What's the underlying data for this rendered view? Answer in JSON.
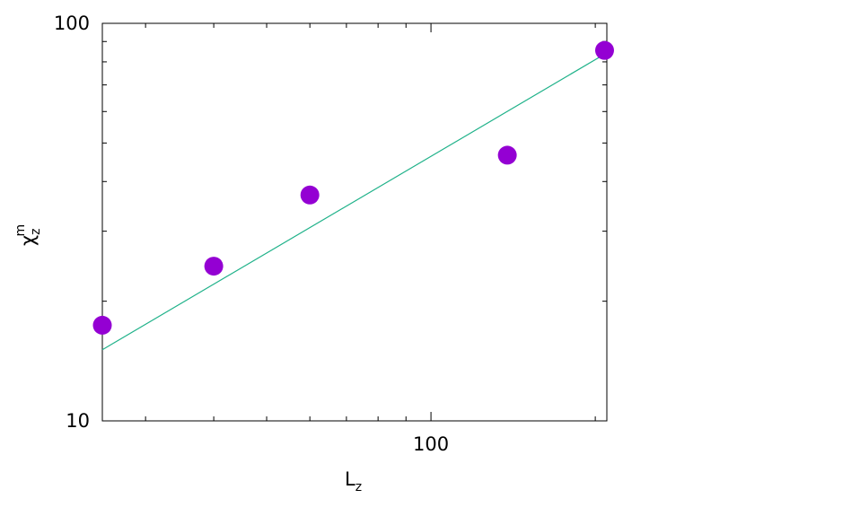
{
  "chart_data": {
    "type": "scatter",
    "x_scale": "log",
    "y_scale": "log",
    "xlim": [
      25,
      210
    ],
    "ylim": [
      10,
      100
    ],
    "x_ticks": [
      {
        "value": 100,
        "label": "100"
      }
    ],
    "y_ticks": [
      {
        "value": 10,
        "label": "10"
      },
      {
        "value": 100,
        "label": "100"
      }
    ],
    "xlabel": {
      "base": "L",
      "sub": "z"
    },
    "ylabel": {
      "base": "χ",
      "sub": "z",
      "sup": "m"
    },
    "grid": false,
    "legend": "none",
    "colors": {
      "points": "#9400d3",
      "fit": "#20b28a"
    },
    "points": [
      {
        "x": 25,
        "y": 17.4
      },
      {
        "x": 40,
        "y": 24.5
      },
      {
        "x": 60,
        "y": 37.0
      },
      {
        "x": 138,
        "y": 46.6
      },
      {
        "x": 208,
        "y": 85.5
      }
    ],
    "fit_line": {
      "x": [
        25,
        210
      ],
      "y": [
        15.1,
        84.3
      ]
    }
  }
}
